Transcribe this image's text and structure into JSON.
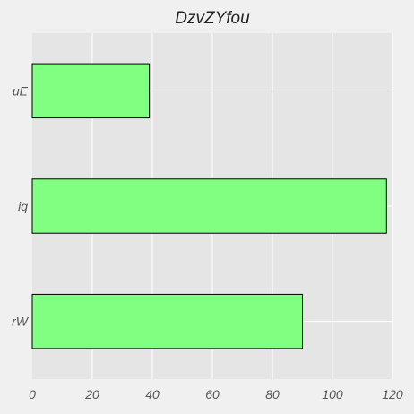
{
  "chart_data": {
    "type": "bar",
    "orientation": "horizontal",
    "title": "DzvZYfou",
    "categories": [
      "uE",
      "iq",
      "rW"
    ],
    "values": [
      39,
      118,
      90
    ],
    "xlabel": "",
    "ylabel": "",
    "xlim": [
      0,
      120
    ],
    "xticks": [
      0,
      20,
      40,
      60,
      80,
      100,
      120
    ],
    "xtick_labels": [
      "0",
      "20",
      "40",
      "60",
      "80",
      "100",
      "120"
    ],
    "grid": true,
    "colors": {
      "bar": "#80ff80",
      "bar_edge": "#000000",
      "plot_background": "#e5e5e5",
      "figure_background": "#f0f0f0",
      "grid": "#ffffff"
    }
  }
}
